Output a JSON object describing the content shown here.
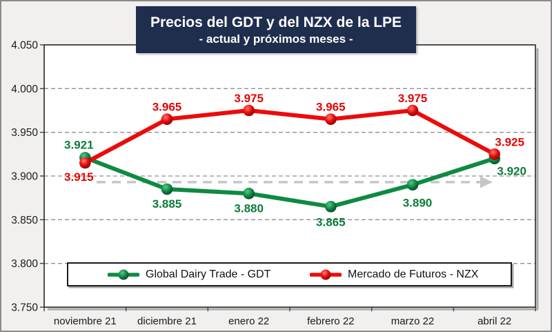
{
  "title": {
    "main": "Precios del GDT y del NZX de la LPE",
    "subtitle": "- actual y próximos meses -"
  },
  "colors": {
    "title_bg": "#1f2e4d",
    "title_text": "#ffffff",
    "background": "#f1f0ee",
    "plot_bg": "#ffffff",
    "grid": "#8f8f8f",
    "axis_text": "#1a1a1a",
    "border": "#262626",
    "shadow": "#ababab",
    "arrow": "#c6c6c6",
    "gdt_green": "#0e8a42",
    "nzx_red": "#ec0b0b"
  },
  "chart_data": {
    "type": "line",
    "title": "Precios del GDT y del NZX de la LPE",
    "subtitle": "- actual y próximos meses -",
    "categories": [
      "noviembre 21",
      "diciembre 21",
      "enero 22",
      "febrero 22",
      "marzo 22",
      "abril 22"
    ],
    "series": [
      {
        "name": "Global Dairy Trade - GDT",
        "color": "#0e8a42",
        "label_color": "#0b7c39",
        "marker_gradient": "sphere-green",
        "values": [
          3.921,
          3.885,
          3.88,
          3.865,
          3.89,
          3.92
        ],
        "point_labels": [
          "3.921",
          "3.885",
          "3.880",
          "3.865",
          "3.890",
          "3.920"
        ],
        "label_offsets": [
          [
            -9,
            -13
          ],
          [
            0,
            27
          ],
          [
            0,
            27
          ],
          [
            0,
            28
          ],
          [
            7,
            32
          ],
          [
            25,
            24
          ]
        ]
      },
      {
        "name": "Mercado de Futuros - NZX",
        "color": "#ec0b0b",
        "label_color": "#e20505",
        "marker_gradient": "sphere-red",
        "values": [
          3.915,
          3.965,
          3.975,
          3.965,
          3.975,
          3.925
        ],
        "point_labels": [
          "3.915",
          "3.965",
          "3.975",
          "3.965",
          "3.975",
          "3.925"
        ],
        "label_offsets": [
          [
            -9,
            26
          ],
          [
            0,
            -12
          ],
          [
            0,
            -12
          ],
          [
            0,
            -12
          ],
          [
            0,
            -12
          ],
          [
            22,
            -12
          ]
        ]
      }
    ],
    "ylim": [
      3.75,
      4.05
    ],
    "ytick_values": [
      4.05,
      4.0,
      3.95,
      3.9,
      3.85,
      3.8,
      3.75
    ],
    "ytick_labels": [
      "4.050",
      "4.000",
      "3.950",
      "3.900",
      "3.850",
      "3.800",
      "3.750"
    ],
    "grid": "horizontal-dashed",
    "legend_position": "bottom-inside",
    "annotation": {
      "type": "dashed-arrow-right",
      "y_value": 3.893
    }
  }
}
